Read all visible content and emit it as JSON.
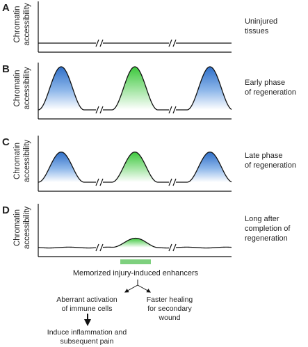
{
  "panels": [
    {
      "letter": "A",
      "ylabel_line1": "Chromatin",
      "ylabel_line2": "accessibility",
      "desc_line1": "Uninjured",
      "desc_line2": "tissues",
      "desc_line3": "",
      "peaks": [
        {
          "height": 0,
          "color": "blue"
        },
        {
          "height": 0,
          "color": "green"
        },
        {
          "height": 0,
          "color": "blue"
        }
      ]
    },
    {
      "letter": "B",
      "ylabel_line1": "Chromatin",
      "ylabel_line2": "accessibility",
      "desc_line1": "Early phase",
      "desc_line2": "of regeneration",
      "desc_line3": "",
      "peaks": [
        {
          "height": 1.0,
          "color": "blue"
        },
        {
          "height": 1.0,
          "color": "green"
        },
        {
          "height": 1.0,
          "color": "blue"
        }
      ]
    },
    {
      "letter": "C",
      "ylabel_line1": "Chromatin",
      "ylabel_line2": "accessibility",
      "desc_line1": "Late phase",
      "desc_line2": "of regeneration",
      "desc_line3": "",
      "peaks": [
        {
          "height": 0.7,
          "color": "blue"
        },
        {
          "height": 0.7,
          "color": "green"
        },
        {
          "height": 0.7,
          "color": "blue"
        }
      ]
    },
    {
      "letter": "D",
      "ylabel_line1": "Chromatin",
      "ylabel_line2": "accessibility",
      "desc_line1": "Long after",
      "desc_line2": "completion of",
      "desc_line3": "regeneration",
      "peaks": [
        {
          "height": 0,
          "color": "blue"
        },
        {
          "height": 0.22,
          "color": "green"
        },
        {
          "height": 0,
          "color": "blue"
        }
      ]
    }
  ],
  "colors": {
    "blue": "#3f7fd0",
    "green": "#4fcf4f",
    "bar": "#7ed07e",
    "line": "#111111"
  },
  "memorized_label": "Memorized injury-induced enhancers",
  "aberrant_line1": "Aberrant activation",
  "aberrant_line2": "of immune cells",
  "faster_line1": "Faster healing",
  "faster_line2": "for secondary",
  "faster_line3": "wound",
  "induce_line1": "Induce inflammation and",
  "induce_line2": "subsequent pain"
}
